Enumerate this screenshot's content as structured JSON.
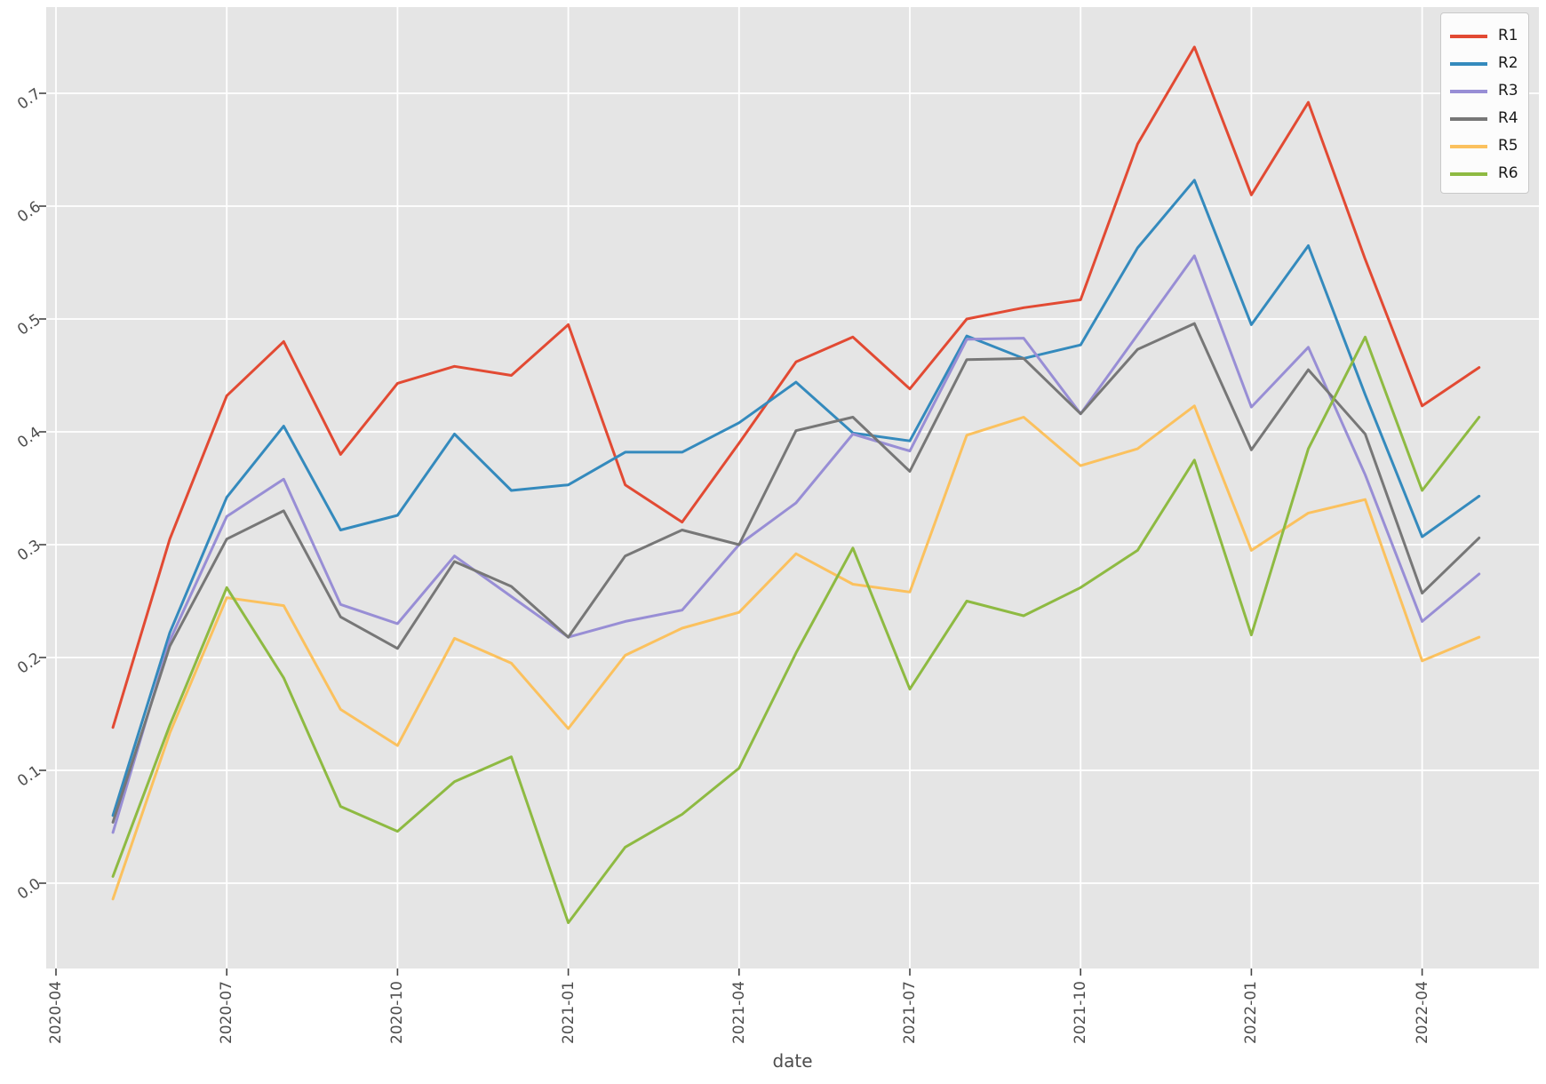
{
  "chart_data": {
    "type": "line",
    "title": "",
    "xlabel": "date",
    "ylabel": "",
    "x": [
      "2020-05",
      "2020-06",
      "2020-07",
      "2020-08",
      "2020-09",
      "2020-10",
      "2020-11",
      "2020-12",
      "2021-01",
      "2021-02",
      "2021-03",
      "2021-04",
      "2021-05",
      "2021-06",
      "2021-07",
      "2021-08",
      "2021-09",
      "2021-10",
      "2021-11",
      "2021-12",
      "2022-01",
      "2022-02",
      "2022-03",
      "2022-04",
      "2022-05"
    ],
    "xtick_labels": [
      "2020-04",
      "2020-07",
      "2020-10",
      "2021-01",
      "2021-04",
      "2021-07",
      "2021-10",
      "2022-01",
      "2022-04"
    ],
    "ytick_labels": [
      "0.0",
      "0.1",
      "0.2",
      "0.3",
      "0.4",
      "0.5",
      "0.6",
      "0.7"
    ],
    "ylim": [
      -0.076,
      0.776
    ],
    "grid": "on",
    "legend_position": "top-right",
    "panel_bg": "#e5e5e5",
    "grid_color": "#ffffff",
    "tick_color": "#4d4d4d",
    "series": [
      {
        "name": "R1",
        "color": "#E24A33",
        "values": [
          0.138,
          0.305,
          0.432,
          0.48,
          0.38,
          0.443,
          0.458,
          0.45,
          0.495,
          0.353,
          0.32,
          0.39,
          0.462,
          0.484,
          0.438,
          0.5,
          0.51,
          0.517,
          0.655,
          0.741,
          0.61,
          0.692,
          0.553,
          0.423,
          0.457
        ]
      },
      {
        "name": "R2",
        "color": "#348ABD",
        "values": [
          0.06,
          0.222,
          0.342,
          0.405,
          0.313,
          0.326,
          0.398,
          0.348,
          0.353,
          0.382,
          0.382,
          0.408,
          0.444,
          0.399,
          0.392,
          0.485,
          0.465,
          0.477,
          0.563,
          0.623,
          0.495,
          0.565,
          0.433,
          0.307,
          0.343
        ]
      },
      {
        "name": "R3",
        "color": "#988ED5",
        "values": [
          0.045,
          0.215,
          0.325,
          0.358,
          0.247,
          0.23,
          0.29,
          0.254,
          0.218,
          0.232,
          0.242,
          0.3,
          0.337,
          0.398,
          0.383,
          0.482,
          0.483,
          0.416,
          0.486,
          0.556,
          0.422,
          0.475,
          0.362,
          0.232,
          0.274
        ]
      },
      {
        "name": "R4",
        "color": "#777777",
        "values": [
          0.054,
          0.21,
          0.305,
          0.33,
          0.236,
          0.208,
          0.285,
          0.263,
          0.218,
          0.29,
          0.313,
          0.3,
          0.401,
          0.413,
          0.365,
          0.464,
          0.465,
          0.416,
          0.473,
          0.496,
          0.384,
          0.455,
          0.398,
          0.257,
          0.306
        ]
      },
      {
        "name": "R5",
        "color": "#FBC15E",
        "values": [
          -0.014,
          0.133,
          0.253,
          0.246,
          0.154,
          0.122,
          0.217,
          0.195,
          0.137,
          0.202,
          0.226,
          0.24,
          0.292,
          0.265,
          0.258,
          0.397,
          0.413,
          0.37,
          0.385,
          0.423,
          0.295,
          0.328,
          0.34,
          0.197,
          0.218
        ]
      },
      {
        "name": "R6",
        "color": "#8EBA42",
        "values": [
          0.006,
          0.14,
          0.262,
          0.182,
          0.068,
          0.046,
          0.09,
          0.112,
          -0.035,
          0.032,
          0.061,
          0.102,
          0.204,
          0.297,
          0.172,
          0.25,
          0.237,
          0.262,
          0.295,
          0.375,
          0.22,
          0.385,
          0.484,
          0.348,
          0.413
        ]
      }
    ]
  }
}
